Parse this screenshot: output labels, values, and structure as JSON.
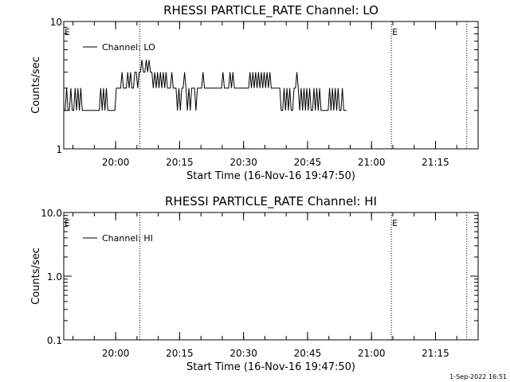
{
  "footer": {
    "date_stamp": "1-Sep-2022 16:51"
  },
  "chart_data": [
    {
      "type": "line",
      "title": "RHESSI PARTICLE_RATE Channel: LO",
      "xlabel": "Start Time (16-Nov-16 19:47:50)",
      "ylabel": "Counts/sec",
      "yscale": "log",
      "ylim": [
        1,
        10
      ],
      "yticks": [
        {
          "v": 1,
          "label": "1"
        },
        {
          "v": 10,
          "label": "10"
        }
      ],
      "xlim": [
        "19:47:50",
        "21:25:00"
      ],
      "xticks": [
        "20:00",
        "20:15",
        "20:30",
        "20:45",
        "21:00",
        "21:15"
      ],
      "event_lines": [
        "20:05:40",
        "21:04:40",
        "21:22:20"
      ],
      "event_markers": [
        {
          "t": "19:47:50",
          "label": "E"
        },
        {
          "t": "21:04:40",
          "label": "E"
        }
      ],
      "legend": {
        "position": "top-left",
        "entries": [
          "Channel: LO"
        ]
      },
      "grid": false,
      "series": [
        {
          "name": "Channel: LO",
          "t_start": "19:47:50",
          "t_step_sec": 20,
          "values": [
            2,
            2,
            3,
            2,
            2,
            3,
            2,
            2,
            3,
            2,
            3,
            2,
            3,
            2,
            2,
            2,
            2,
            2,
            2,
            2,
            2,
            2,
            2,
            2,
            2,
            2,
            3,
            2,
            3,
            2,
            3,
            2,
            2,
            2,
            2,
            2,
            2,
            3,
            3,
            3,
            3,
            4,
            3,
            3,
            3,
            4,
            3,
            4,
            3,
            3,
            4,
            4,
            3,
            4,
            4,
            5,
            4,
            4,
            5,
            4,
            5,
            4,
            4,
            3,
            4,
            3,
            4,
            3,
            4,
            3,
            4,
            3,
            4,
            3,
            3,
            3,
            4,
            3,
            3,
            3,
            2,
            3,
            2,
            3,
            3,
            4,
            3,
            2,
            3,
            2,
            3,
            3,
            3,
            2,
            3,
            3,
            3,
            3,
            4,
            3,
            3,
            3,
            3,
            3,
            3,
            3,
            3,
            3,
            3,
            3,
            3,
            3,
            4,
            3,
            3,
            3,
            3,
            4,
            3,
            4,
            3,
            3,
            3,
            3,
            3,
            3,
            3,
            3,
            3,
            3,
            3,
            4,
            3,
            4,
            3,
            4,
            3,
            4,
            3,
            4,
            3,
            4,
            3,
            4,
            3,
            4,
            3,
            3,
            3,
            3,
            3,
            3,
            3,
            2,
            2,
            3,
            2,
            3,
            2,
            3,
            2,
            2,
            3,
            3,
            4,
            3,
            2,
            3,
            2,
            3,
            2,
            3,
            2,
            3,
            2,
            2,
            3,
            2,
            3,
            2,
            3,
            2,
            2,
            2,
            2,
            2,
            2,
            3,
            2,
            3,
            2,
            3,
            2,
            3,
            2,
            2,
            3,
            2,
            2,
            2
          ]
        }
      ]
    },
    {
      "type": "line",
      "title": "RHESSI PARTICLE_RATE Channel: HI",
      "xlabel": "Start Time (16-Nov-16 19:47:50)",
      "ylabel": "Counts/sec",
      "yscale": "log",
      "ylim": [
        0.1,
        10
      ],
      "yticks": [
        {
          "v": 0.1,
          "label": "0.1"
        },
        {
          "v": 1,
          "label": "1.0"
        },
        {
          "v": 10,
          "label": "10.0"
        }
      ],
      "xlim": [
        "19:47:50",
        "21:25:00"
      ],
      "xticks": [
        "20:00",
        "20:15",
        "20:30",
        "20:45",
        "21:00",
        "21:15"
      ],
      "event_lines": [
        "20:05:40",
        "21:04:40",
        "21:22:20"
      ],
      "event_markers": [
        {
          "t": "19:47:50",
          "label": "E"
        },
        {
          "t": "21:04:40",
          "label": "E"
        }
      ],
      "legend": {
        "position": "top-left",
        "entries": [
          "Channel: HI"
        ]
      },
      "grid": false,
      "series": [
        {
          "name": "Channel: HI",
          "values": []
        }
      ]
    }
  ]
}
